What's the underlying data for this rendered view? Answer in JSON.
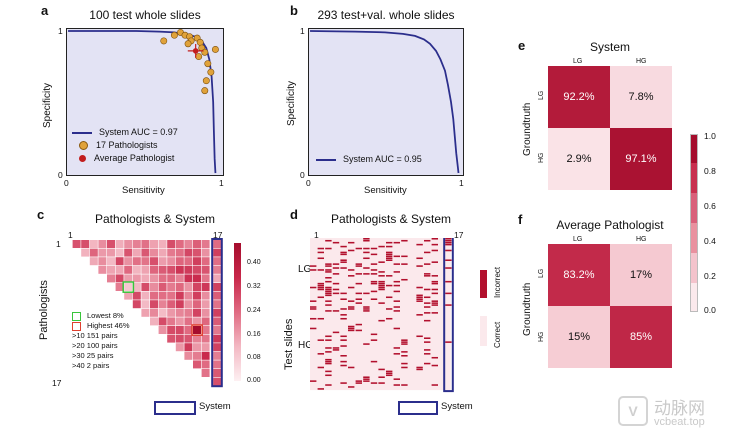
{
  "watermark": {
    "brand": "动脉网",
    "site": "vcbeat.top"
  },
  "colors": {
    "system_line": "#2b2e8c",
    "pathologist": "#e0a23a",
    "avg_pathologist": "#c21d1d",
    "roc_bg": "#e3e3f4",
    "heat_dark": "#b2102d",
    "heat_light": "#fbe9ec"
  },
  "chart_data": [
    {
      "panel": "a",
      "type": "line",
      "title": "100 test whole slides",
      "xlabel": "Sensitivity",
      "ylabel": "Specificity",
      "xlim": [
        0,
        1
      ],
      "ylim": [
        0,
        1
      ],
      "x_ticks": [
        "0",
        "1"
      ],
      "y_ticks": [
        "0",
        "1"
      ],
      "series": [
        {
          "name": "System AUC = 0.97",
          "kind": "line",
          "points": [
            [
              0,
              1
            ],
            [
              0.45,
              1
            ],
            [
              0.6,
              0.995
            ],
            [
              0.7,
              0.99
            ],
            [
              0.78,
              0.975
            ],
            [
              0.84,
              0.96
            ],
            [
              0.88,
              0.93
            ],
            [
              0.91,
              0.88
            ],
            [
              0.93,
              0.8
            ],
            [
              0.945,
              0.68
            ],
            [
              0.955,
              0.5
            ],
            [
              0.96,
              0.3
            ],
            [
              0.965,
              0.1
            ],
            [
              0.97,
              0
            ]
          ]
        },
        {
          "name": "17 Pathologists",
          "kind": "scatter",
          "points": [
            [
              0.63,
              0.93
            ],
            [
              0.7,
              0.97
            ],
            [
              0.74,
              0.99
            ],
            [
              0.77,
              0.97
            ],
            [
              0.8,
              0.96
            ],
            [
              0.81,
              0.93
            ],
            [
              0.79,
              0.91
            ],
            [
              0.85,
              0.95
            ],
            [
              0.87,
              0.92
            ],
            [
              0.88,
              0.88
            ],
            [
              0.9,
              0.85
            ],
            [
              0.86,
              0.82
            ],
            [
              0.92,
              0.77
            ],
            [
              0.94,
              0.71
            ],
            [
              0.91,
              0.65
            ],
            [
              0.9,
              0.58
            ],
            [
              0.97,
              0.87
            ]
          ]
        },
        {
          "name": "Average Pathologist",
          "kind": "point",
          "points": [
            [
              0.84,
              0.86
            ]
          ]
        }
      ]
    },
    {
      "panel": "b",
      "type": "line",
      "title": "293 test+val. whole slides",
      "xlabel": "Sensitivity",
      "ylabel": "Specificity",
      "xlim": [
        0,
        1
      ],
      "ylim": [
        0,
        1
      ],
      "x_ticks": [
        "0",
        "1"
      ],
      "y_ticks": [
        "0",
        "1"
      ],
      "series": [
        {
          "name": "System AUC = 0.95",
          "kind": "line",
          "points": [
            [
              0,
              1
            ],
            [
              0.3,
              0.995
            ],
            [
              0.5,
              0.99
            ],
            [
              0.62,
              0.98
            ],
            [
              0.7,
              0.965
            ],
            [
              0.76,
              0.94
            ],
            [
              0.8,
              0.91
            ],
            [
              0.84,
              0.86
            ],
            [
              0.87,
              0.8
            ],
            [
              0.9,
              0.72
            ],
            [
              0.92,
              0.62
            ],
            [
              0.94,
              0.5
            ],
            [
              0.955,
              0.38
            ],
            [
              0.965,
              0.26
            ],
            [
              0.975,
              0.14
            ],
            [
              0.985,
              0.05
            ],
            [
              0.99,
              0
            ]
          ]
        }
      ]
    },
    {
      "panel": "c",
      "type": "heatmap",
      "title": "Pathologists & System",
      "ylabel": "Pathologists",
      "row_labels": [
        "1",
        "17"
      ],
      "col_labels": [
        "1",
        "17"
      ],
      "colorbar_ticks": [
        "0.40",
        "0.32",
        "0.24",
        "0.16",
        "0.08",
        "0.00"
      ],
      "colorbar_range": [
        0,
        0.44
      ],
      "legend": [
        "Lowest 8%",
        "Highest 46%"
      ],
      "pair_counts": [
        ">10  151 pairs",
        ">20  100 pairs",
        ">30   25 pairs",
        ">40    2 pairs"
      ],
      "system_label": "System",
      "description": "Lower-triangular pairwise disagreement matrix (17 pathologists) plus system column; lowest 8%, highest 46%."
    },
    {
      "panel": "d",
      "type": "heatmap",
      "title": "Pathologists & System",
      "ylabel": "Test slides",
      "row_groups": [
        "LG",
        "HG"
      ],
      "col_labels": [
        "1",
        "17"
      ],
      "colorbar_labels": [
        "Incorrect",
        "Correct"
      ],
      "system_label": "System",
      "description": "Binary correct/incorrect matrix: rows are test slides grouped into LG and HG, columns are 17 pathologists and the system."
    },
    {
      "panel": "e",
      "type": "heatmap",
      "title": "System",
      "ylabel": "Groundtruth",
      "col_labels": [
        "LG",
        "HG"
      ],
      "row_labels": [
        "LG",
        "HG"
      ],
      "values": [
        [
          92.2,
          7.8
        ],
        [
          2.9,
          97.1
        ]
      ],
      "cell_text": [
        [
          "92.2%",
          "7.8%"
        ],
        [
          "2.9%",
          "97.1%"
        ]
      ]
    },
    {
      "panel": "f",
      "type": "heatmap",
      "title": "Average Pathologist",
      "ylabel": "Groundtruth",
      "col_labels": [
        "LG",
        "HG"
      ],
      "row_labels": [
        "LG",
        "HG"
      ],
      "values": [
        [
          83.2,
          17
        ],
        [
          15,
          85
        ]
      ],
      "cell_text": [
        [
          "83.2%",
          "17%"
        ],
        [
          "15%",
          "85%"
        ]
      ],
      "colorbar_ticks": [
        "1.0",
        "0.8",
        "0.6",
        "0.4",
        "0.2",
        "0.0"
      ]
    }
  ]
}
